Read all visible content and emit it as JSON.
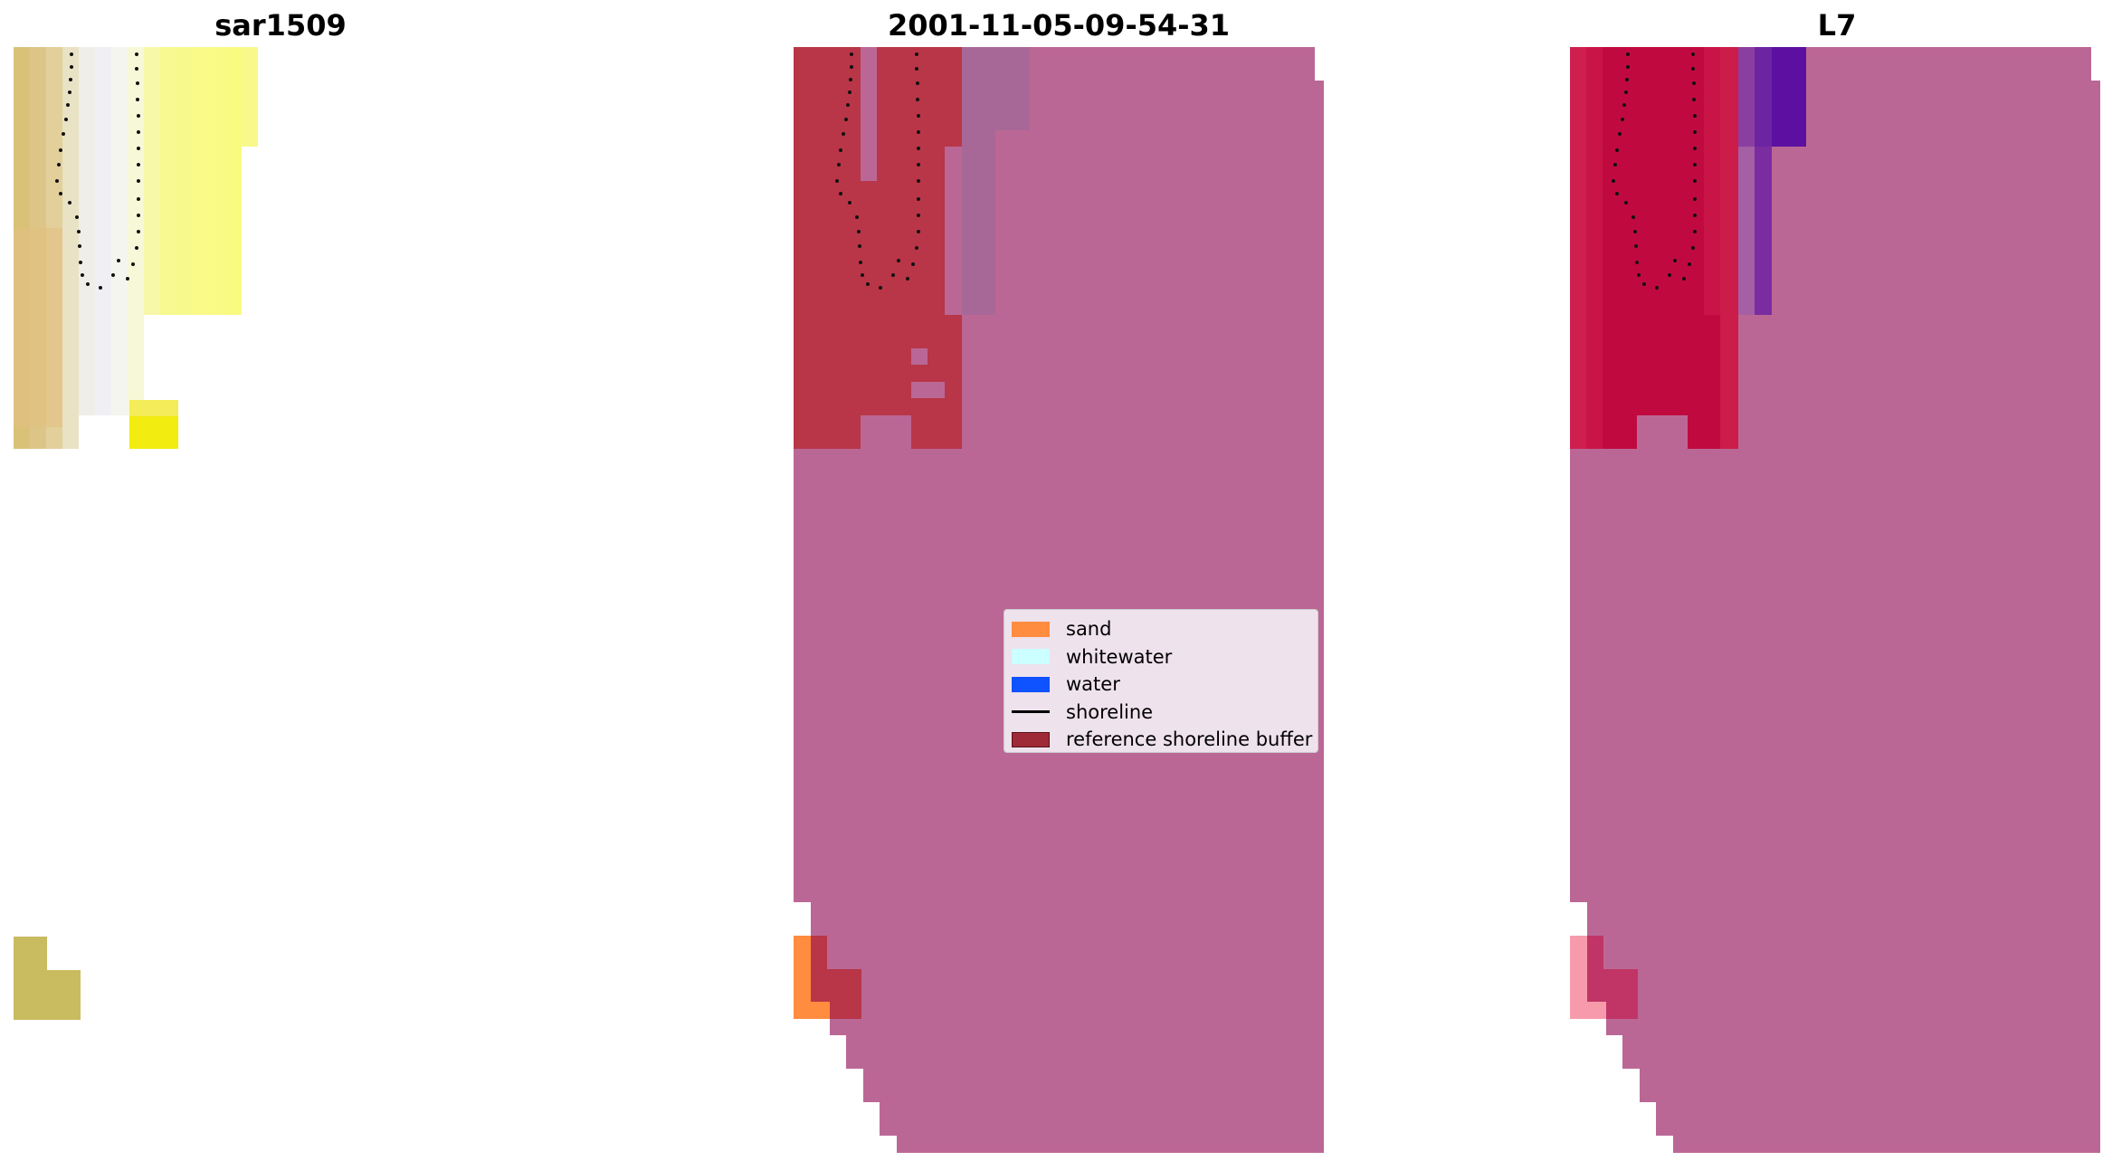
{
  "panels": [
    {
      "title": "sar1509"
    },
    {
      "title": "2001-11-05-09-54-31"
    },
    {
      "title": "L7"
    }
  ],
  "legend": {
    "items": [
      {
        "label": "sand",
        "kind": "patch",
        "color": "#ff8c3f"
      },
      {
        "label": "whitewater",
        "kind": "patch",
        "color": "#ccffff"
      },
      {
        "label": "water",
        "kind": "patch",
        "color": "#0f52ff"
      },
      {
        "label": "shoreline",
        "kind": "line",
        "color": "#000000"
      },
      {
        "label": "reference shoreline buffer",
        "kind": "patch",
        "color": "#9e2a37",
        "edge": "#5a0f18"
      }
    ]
  },
  "colors": {
    "classification_background": "#bb6796",
    "buffer_overlay": "#b83647",
    "l7_buffer": "#c0033c",
    "l7_water_tint": "#5c0fa0",
    "sand_pixel": "#ff8c3f",
    "sand_pixel_pink": "#f79bac"
  }
}
